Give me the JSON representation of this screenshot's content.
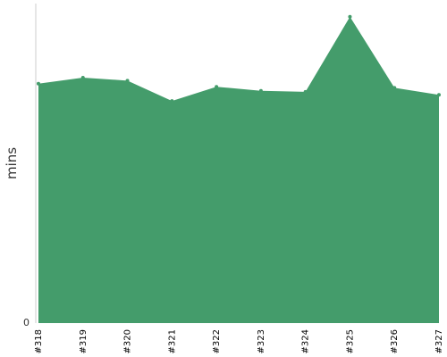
{
  "chart_data": {
    "type": "area",
    "categories": [
      "#318",
      "#319",
      "#320",
      "#321",
      "#322",
      "#323",
      "#324",
      "#325",
      "#326",
      "#327"
    ],
    "series": [
      {
        "values": [
          23.6,
          24.2,
          23.9,
          21.9,
          23.3,
          22.9,
          22.8,
          30.2,
          23.2,
          22.5
        ],
        "color": "#449c6b"
      }
    ],
    "title": "",
    "xlabel": "",
    "ylabel": "mins",
    "ylim": [
      0,
      31.5
    ],
    "yticks": [
      "0"
    ],
    "grid": false,
    "legend": "none"
  }
}
